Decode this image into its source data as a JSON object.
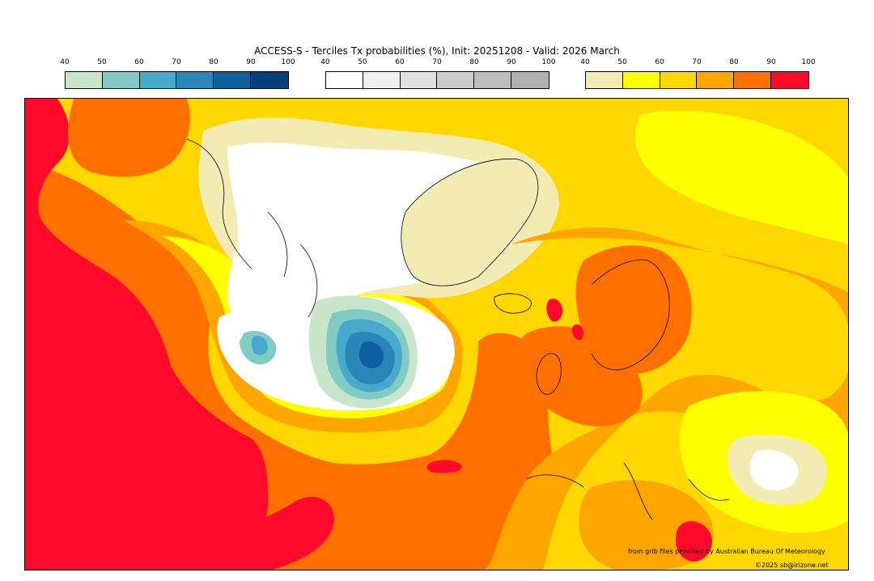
{
  "title": "ACCESS-S - Terciles Tx probabilities (%), Init: 20251208 - Valid: 2026 March",
  "colorbars": [
    {
      "name": "below-normal",
      "ticks": [
        "40",
        "50",
        "60",
        "70",
        "80",
        "90",
        "100"
      ],
      "colors": [
        "#c8e6c9",
        "#80cbc4",
        "#4aa8cc",
        "#2a86b9",
        "#0f5fa3",
        "#08407e"
      ]
    },
    {
      "name": "near-normal",
      "ticks": [
        "40",
        "50",
        "60",
        "70",
        "80",
        "90",
        "100"
      ],
      "colors": [
        "#ffffff",
        "#f0f0f0",
        "#e0e0e0",
        "#cccccc",
        "#bdbdbd",
        "#b0b0b0"
      ]
    },
    {
      "name": "above-normal",
      "ticks": [
        "40",
        "50",
        "60",
        "70",
        "80",
        "90",
        "100"
      ],
      "colors": [
        "#f2ecb4",
        "#ffff00",
        "#ffd700",
        "#ffa500",
        "#ff7000",
        "#ff0a2a"
      ]
    }
  ],
  "credits": {
    "source": "from grib files provided by Australian Bureau Of Meteorology",
    "copyright": "©2025 sb@irizone.net"
  },
  "map_colors": {
    "red": "#ff0a2a",
    "dark_orange": "#ff7000",
    "orange": "#ffa500",
    "gold": "#ffd700",
    "yellow": "#ffff00",
    "pale_yellow": "#f2ecb4",
    "white": "#ffffff",
    "light_green": "#c8e6c9",
    "teal": "#80cbc4",
    "light_blue": "#4aa8cc",
    "blue": "#2a86b9",
    "dark_blue": "#0f5fa3"
  }
}
